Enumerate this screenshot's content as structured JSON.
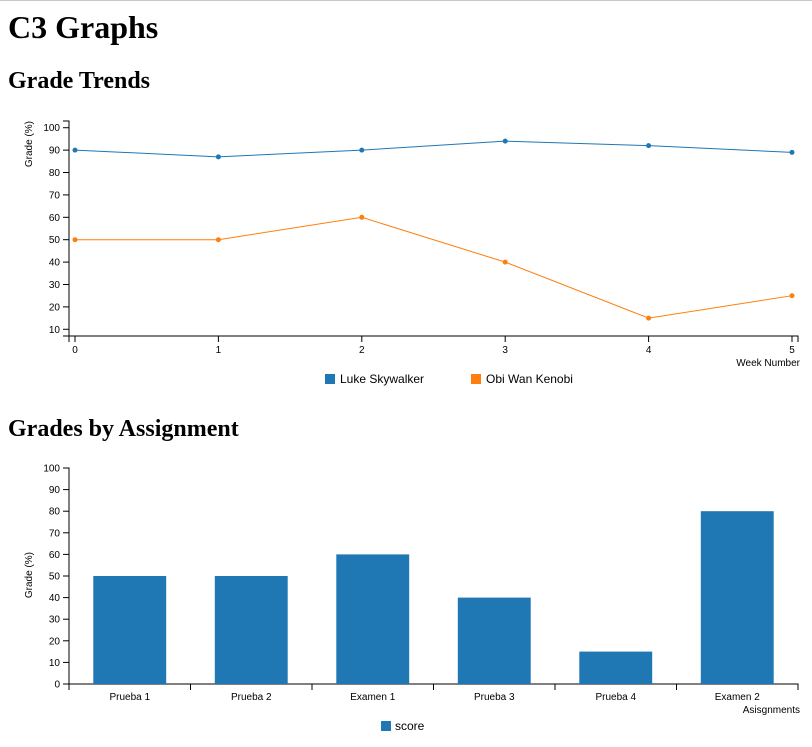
{
  "page": {
    "title": "C3 Graphs"
  },
  "chart_data": [
    {
      "type": "line",
      "title": "Grade Trends",
      "xlabel": "Week Number",
      "ylabel": "Grade (%)",
      "x": [
        0,
        1,
        2,
        3,
        4,
        5
      ],
      "xlim": [
        0,
        5
      ],
      "ylim": [
        7,
        103
      ],
      "yticks": [
        10,
        20,
        30,
        40,
        50,
        60,
        70,
        80,
        90,
        100
      ],
      "grid": false,
      "legend_position": "bottom",
      "series": [
        {
          "name": "Luke Skywalker",
          "color": "#1f77b4",
          "values": [
            90,
            87,
            90,
            94,
            92,
            89
          ]
        },
        {
          "name": "Obi Wan Kenobi",
          "color": "#ff7f0e",
          "values": [
            50,
            50,
            60,
            40,
            15,
            25
          ]
        }
      ]
    },
    {
      "type": "bar",
      "title": "Grades by Assignment",
      "xlabel": "Asisgnments",
      "ylabel": "Grade (%)",
      "categories": [
        "Prueba 1",
        "Prueba 2",
        "Examen 1",
        "Prueba 3",
        "Prueba 4",
        "Examen 2"
      ],
      "ylim": [
        0,
        100
      ],
      "yticks": [
        0,
        10,
        20,
        30,
        40,
        50,
        60,
        70,
        80,
        90,
        100
      ],
      "grid": false,
      "legend_position": "bottom",
      "series": [
        {
          "name": "score",
          "color": "#1f77b4",
          "values": [
            50,
            50,
            60,
            40,
            15,
            80
          ]
        }
      ]
    }
  ]
}
